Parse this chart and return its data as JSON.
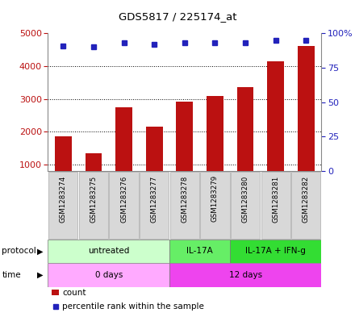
{
  "title": "GDS5817 / 225174_at",
  "samples": [
    "GSM1283274",
    "GSM1283275",
    "GSM1283276",
    "GSM1283277",
    "GSM1283278",
    "GSM1283279",
    "GSM1283280",
    "GSM1283281",
    "GSM1283282"
  ],
  "counts": [
    1850,
    1340,
    2750,
    2150,
    2920,
    3080,
    3350,
    4150,
    4620
  ],
  "percentile_ranks": [
    91,
    90,
    93,
    92,
    93,
    93,
    93,
    95,
    95
  ],
  "bar_color": "#bb1111",
  "dot_color": "#2222bb",
  "ylim_left": [
    800,
    5000
  ],
  "ylim_right": [
    0,
    100
  ],
  "yticks_left": [
    1000,
    2000,
    3000,
    4000,
    5000
  ],
  "yticks_right": [
    0,
    25,
    50,
    75,
    100
  ],
  "protocol_groups": [
    {
      "label": "untreated",
      "start": 0,
      "end": 4,
      "color": "#ccffcc"
    },
    {
      "label": "IL-17A",
      "start": 4,
      "end": 6,
      "color": "#66ee66"
    },
    {
      "label": "IL-17A + IFN-g",
      "start": 6,
      "end": 9,
      "color": "#33dd33"
    }
  ],
  "time_groups": [
    {
      "label": "0 days",
      "start": 0,
      "end": 4,
      "color": "#ffaaff"
    },
    {
      "label": "12 days",
      "start": 4,
      "end": 9,
      "color": "#ee44ee"
    }
  ],
  "sample_box_color": "#d8d8d8",
  "sample_box_edge": "#aaaaaa",
  "legend_count_color": "#bb1111",
  "legend_dot_color": "#2222bb",
  "bar_width": 0.55
}
